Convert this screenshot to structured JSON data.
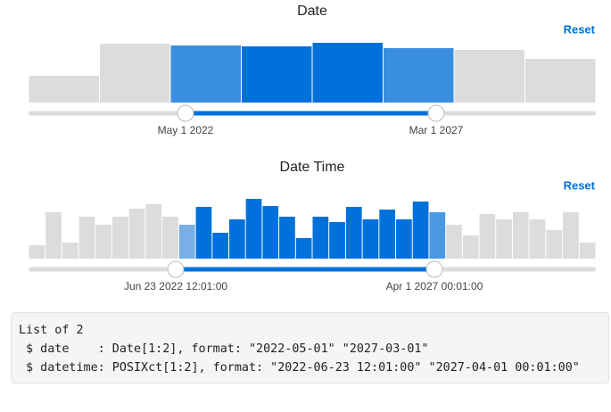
{
  "histograms": [
    {
      "title": "Date",
      "reset": "Reset",
      "counts": [
        30,
        66,
        64,
        63,
        67,
        61,
        59,
        49
      ],
      "colors": [
        "#dcdcdc",
        "#dcdcdc",
        "#3a8ee0",
        "#0071db",
        "#0071db",
        "#3a8ee0",
        "#dcdcdc",
        "#dcdcdc"
      ],
      "handle_labels": [
        "May 1 2022",
        "Mar 1 2027"
      ]
    },
    {
      "title": "Date Time",
      "reset": "Reset",
      "counts": [
        15,
        52,
        18,
        47,
        38,
        47,
        56,
        61,
        47,
        38,
        58,
        29,
        44,
        67,
        59,
        47,
        23,
        47,
        41,
        58,
        44,
        55,
        44,
        64,
        52,
        38,
        26,
        50,
        44,
        52,
        44,
        32,
        52,
        18
      ],
      "colors": [
        "#dcdcdc",
        "#dcdcdc",
        "#dcdcdc",
        "#dcdcdc",
        "#dcdcdc",
        "#dcdcdc",
        "#dcdcdc",
        "#dcdcdc",
        "#dcdcdc",
        "#7aaee6",
        "#0071db",
        "#0071db",
        "#0071db",
        "#0071db",
        "#0071db",
        "#0071db",
        "#0071db",
        "#0071db",
        "#0071db",
        "#0071db",
        "#0071db",
        "#0071db",
        "#0071db",
        "#0071db",
        "#4a98e3",
        "#dcdcdc",
        "#dcdcdc",
        "#dcdcdc",
        "#dcdcdc",
        "#dcdcdc",
        "#dcdcdc",
        "#dcdcdc",
        "#dcdcdc",
        "#dcdcdc"
      ],
      "handle_labels": [
        "Jun 23 2022 12:01:00",
        "Apr 1 2027 00:01:00"
      ]
    }
  ],
  "output": {
    "lines": [
      "List of 2",
      " $ date    : Date[1:2], format: \"2022-05-01\" \"2027-03-01\"",
      " $ datetime: POSIXct[1:2], format: \"2022-06-23 12:01:00\" \"2027-04-01 00:01:00\""
    ]
  }
}
